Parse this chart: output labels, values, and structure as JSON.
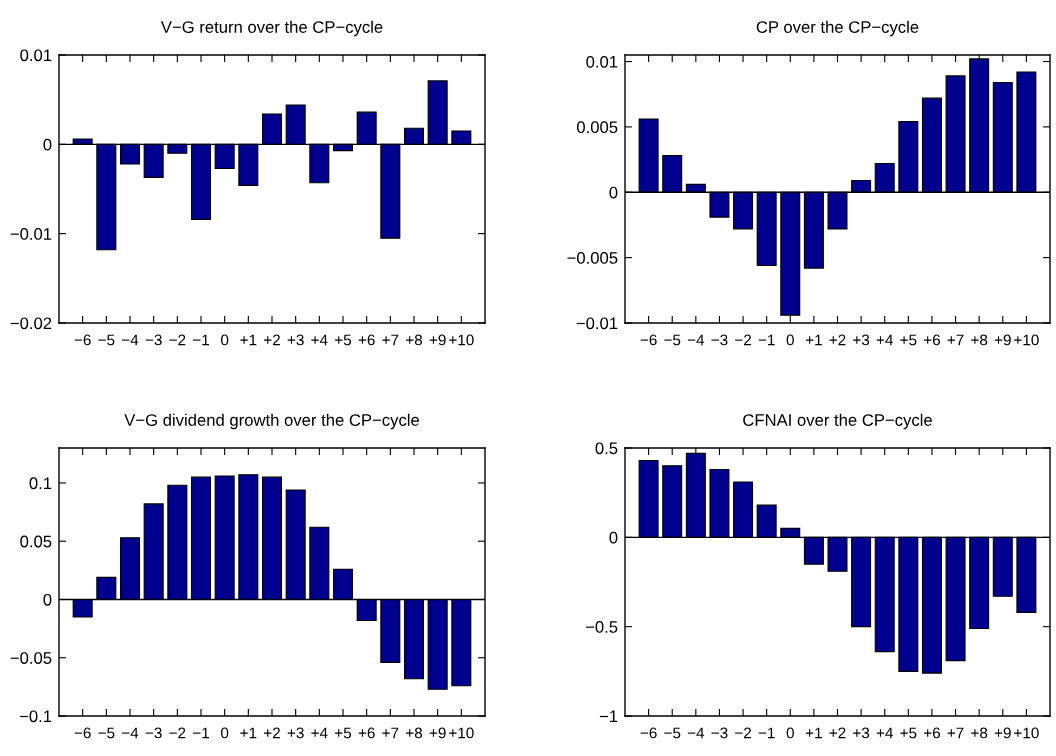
{
  "chart_data": [
    {
      "type": "bar",
      "title": "V−G return over the CP−cycle",
      "categories": [
        "−6",
        "−5",
        "−4",
        "−3",
        "−2",
        "−1",
        "0",
        "+1",
        "+2",
        "+3",
        "+4",
        "+5",
        "+6",
        "+7",
        "+8",
        "+9",
        "+10"
      ],
      "values": [
        0.0006,
        -0.0118,
        -0.0022,
        -0.0037,
        -0.001,
        -0.0084,
        -0.0027,
        -0.0046,
        0.0034,
        0.0044,
        -0.0043,
        -0.0007,
        0.0036,
        -0.0105,
        0.0018,
        0.0071,
        0.0015
      ],
      "color": "#00008f",
      "ylim": [
        -0.02,
        0.01
      ],
      "yticks": [
        {
          "value": -0.02,
          "label": "−0.02"
        },
        {
          "value": -0.01,
          "label": "−0.01"
        },
        0,
        0.01
      ],
      "ref_lines": [
        {
          "axis": "y",
          "value": 0,
          "color": "#000000"
        }
      ]
    },
    {
      "type": "bar",
      "title": "CP over the CP−cycle",
      "categories": [
        "−6",
        "−5",
        "−4",
        "−3",
        "−2",
        "−1",
        "0",
        "+1",
        "+2",
        "+3",
        "+4",
        "+5",
        "+6",
        "+7",
        "+8",
        "+9",
        "+10"
      ],
      "values": [
        0.0056,
        0.0028,
        0.0006,
        -0.0019,
        -0.0028,
        -0.0056,
        -0.0094,
        -0.0058,
        -0.0028,
        0.0009,
        0.0022,
        0.0054,
        0.0072,
        0.0089,
        0.0102,
        0.0084,
        0.0092
      ],
      "color": "#00008f",
      "ylim": [
        -0.01,
        0.0105
      ],
      "yticks": [
        {
          "value": -0.01,
          "label": "−0.01"
        },
        {
          "value": -0.005,
          "label": "−0.005"
        },
        0,
        0.005,
        0.01
      ],
      "ref_lines": [
        {
          "axis": "y",
          "value": 0,
          "color": "#000000"
        }
      ]
    },
    {
      "type": "bar",
      "title": "V−G dividend growth over the CP−cycle",
      "categories": [
        "−6",
        "−5",
        "−4",
        "−3",
        "−2",
        "−1",
        "0",
        "+1",
        "+2",
        "+3",
        "+4",
        "+5",
        "+6",
        "+7",
        "+8",
        "+9",
        "+10"
      ],
      "values": [
        -0.015,
        0.019,
        0.053,
        0.082,
        0.098,
        0.105,
        0.106,
        0.107,
        0.105,
        0.094,
        0.062,
        0.026,
        -0.018,
        -0.054,
        -0.068,
        -0.077,
        -0.074
      ],
      "color": "#00008f",
      "ylim": [
        -0.1,
        0.13
      ],
      "yticks": [
        {
          "value": -0.1,
          "label": "−0.1"
        },
        {
          "value": -0.05,
          "label": "−0.05"
        },
        0,
        0.05,
        0.1
      ],
      "ref_lines": [
        {
          "axis": "y",
          "value": 0,
          "color": "#000000"
        }
      ]
    },
    {
      "type": "bar",
      "title": "CFNAI over the CP−cycle",
      "categories": [
        "−6",
        "−5",
        "−4",
        "−3",
        "−2",
        "−1",
        "0",
        "+1",
        "+2",
        "+3",
        "+4",
        "+5",
        "+6",
        "+7",
        "+8",
        "+9",
        "+10"
      ],
      "values": [
        0.43,
        0.4,
        0.47,
        0.38,
        0.31,
        0.18,
        0.05,
        -0.15,
        -0.19,
        -0.5,
        -0.64,
        -0.75,
        -0.76,
        -0.69,
        -0.51,
        -0.33,
        -0.42
      ],
      "color": "#00008f",
      "ylim": [
        -1,
        0.5
      ],
      "yticks": [
        {
          "value": -1,
          "label": "−1"
        },
        {
          "value": -0.5,
          "label": "−0.5"
        },
        0,
        0.5
      ],
      "ref_lines": [
        {
          "axis": "y",
          "value": 0,
          "color": "#000000"
        }
      ]
    }
  ]
}
